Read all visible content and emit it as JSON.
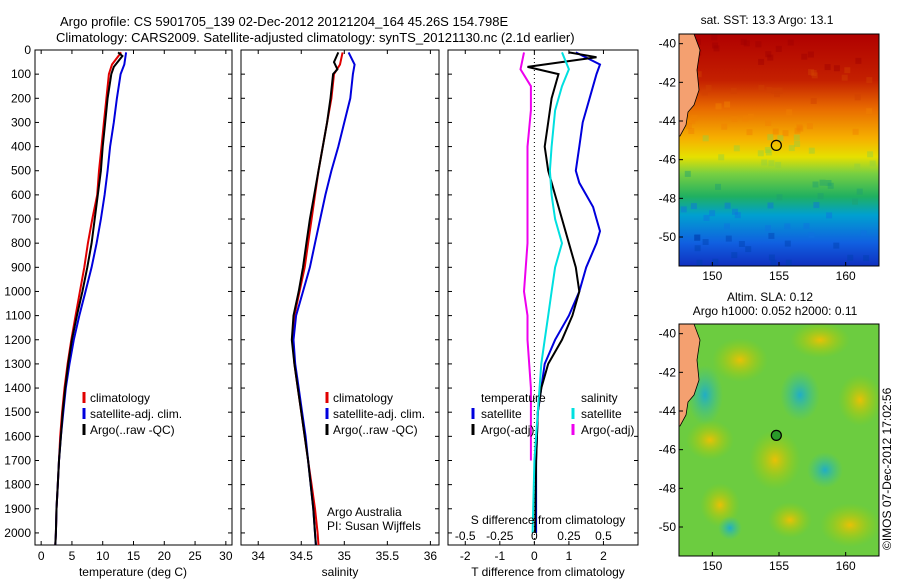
{
  "figure": {
    "title_line1": "Argo profile: CS 5901705_139 02-Dec-2012 20121204_164 45.26S 154.798E",
    "title_line2": "Climatology: CARS2009. Satellite-adjusted climatology: synTS_20121130.nc (2.1d earlier)",
    "side_stamp": "©IMOS 07-Dec-2012 17:02:56",
    "credit_line1": "Argo Australia",
    "credit_line2": "PI: Susan Wijffels"
  },
  "colors": {
    "climatology": "#e00000",
    "satellite": "#0000dd",
    "argo": "#000000",
    "salinity_sat": "#00e0e0",
    "salinity_argo": "#ee00ee"
  },
  "chart_data": [
    {
      "type": "line",
      "panel": "temperature",
      "xlabel": "temperature (deg C)",
      "xlim": [
        -1,
        31
      ],
      "xticks": [
        0,
        5,
        10,
        15,
        20,
        25,
        30
      ],
      "ylim": [
        2050,
        0
      ],
      "yticks": [
        0,
        100,
        200,
        300,
        400,
        500,
        600,
        700,
        800,
        900,
        1000,
        1100,
        1200,
        1300,
        1400,
        1500,
        1600,
        1700,
        1800,
        1900,
        2000
      ],
      "legend": [
        "climatology",
        "satellite-adj. clim.",
        "Argo(..raw -QC)"
      ],
      "legend_position": "lower-center",
      "series": [
        {
          "name": "climatology",
          "color": "#e00000",
          "points": [
            [
              13,
              10
            ],
            [
              11.5,
              60
            ],
            [
              11,
              100
            ],
            [
              10.6,
              200
            ],
            [
              10.2,
              300
            ],
            [
              9.8,
              400
            ],
            [
              9.4,
              500
            ],
            [
              9.1,
              600
            ],
            [
              8.3,
              700
            ],
            [
              7.6,
              800
            ],
            [
              7,
              900
            ],
            [
              6.3,
              1000
            ],
            [
              5.6,
              1100
            ],
            [
              4.9,
              1200
            ],
            [
              4.3,
              1300
            ],
            [
              3.8,
              1400
            ],
            [
              3.4,
              1500
            ],
            [
              3.1,
              1600
            ],
            [
              2.9,
              1700
            ],
            [
              2.7,
              1800
            ],
            [
              2.5,
              1900
            ],
            [
              2.4,
              2000
            ],
            [
              2.3,
              2050
            ]
          ]
        },
        {
          "name": "satellite-adj. clim.",
          "color": "#0000dd",
          "points": [
            [
              13.8,
              10
            ],
            [
              13.5,
              60
            ],
            [
              12.9,
              100
            ],
            [
              12.3,
              200
            ],
            [
              11.8,
              300
            ],
            [
              11.2,
              400
            ],
            [
              10.8,
              500
            ],
            [
              10.3,
              600
            ],
            [
              9.7,
              700
            ],
            [
              9,
              800
            ],
            [
              8.2,
              900
            ],
            [
              7.2,
              1000
            ],
            [
              6.2,
              1100
            ],
            [
              5.3,
              1200
            ],
            [
              4.6,
              1300
            ],
            [
              4,
              1400
            ],
            [
              3.6,
              1500
            ],
            [
              3.2,
              1600
            ],
            [
              2.9,
              1700
            ],
            [
              2.7,
              1800
            ],
            [
              2.5,
              1900
            ],
            [
              2.4,
              2000
            ],
            [
              2.3,
              2050
            ]
          ]
        },
        {
          "name": "Argo(..raw -QC)",
          "color": "#000000",
          "points": [
            [
              12.5,
              10
            ],
            [
              13.2,
              25
            ],
            [
              11.8,
              70
            ],
            [
              11.4,
              100
            ],
            [
              10.8,
              200
            ],
            [
              10.4,
              300
            ],
            [
              10,
              400
            ],
            [
              9.7,
              500
            ],
            [
              9.2,
              600
            ],
            [
              8.7,
              700
            ],
            [
              8.2,
              800
            ],
            [
              7.5,
              900
            ],
            [
              6.7,
              1000
            ],
            [
              5.8,
              1100
            ],
            [
              5,
              1200
            ],
            [
              4.4,
              1300
            ],
            [
              3.9,
              1400
            ],
            [
              3.5,
              1500
            ],
            [
              3.2,
              1600
            ],
            [
              2.9,
              1700
            ],
            [
              2.7,
              1800
            ],
            [
              2.5,
              1900
            ],
            [
              2.4,
              2000
            ],
            [
              2.3,
              2050
            ]
          ]
        }
      ]
    },
    {
      "type": "line",
      "panel": "salinity",
      "xlabel": "salinity",
      "xlim": [
        33.8,
        36.1
      ],
      "xticks": [
        34,
        34.5,
        35,
        35.5,
        36
      ],
      "xtick_labels": [
        "34",
        "34.5",
        "35",
        "35.5",
        "36"
      ],
      "ylim": [
        2050,
        0
      ],
      "legend": [
        "climatology",
        "satellite-adj. clim.",
        "Argo(..raw -QC)"
      ],
      "legend_position": "lower-right",
      "series": [
        {
          "name": "climatology",
          "color": "#e00000",
          "points": [
            [
              34.98,
              10
            ],
            [
              34.95,
              60
            ],
            [
              34.88,
              100
            ],
            [
              34.85,
              200
            ],
            [
              34.8,
              300
            ],
            [
              34.75,
              400
            ],
            [
              34.7,
              500
            ],
            [
              34.66,
              600
            ],
            [
              34.62,
              700
            ],
            [
              34.58,
              800
            ],
            [
              34.54,
              900
            ],
            [
              34.48,
              1000
            ],
            [
              34.42,
              1100
            ],
            [
              34.4,
              1200
            ],
            [
              34.42,
              1300
            ],
            [
              34.46,
              1400
            ],
            [
              34.5,
              1500
            ],
            [
              34.54,
              1600
            ],
            [
              34.58,
              1700
            ],
            [
              34.62,
              1800
            ],
            [
              34.66,
              1900
            ],
            [
              34.69,
              2000
            ],
            [
              34.7,
              2050
            ]
          ]
        },
        {
          "name": "satellite-adj. clim.",
          "color": "#0000dd",
          "points": [
            [
              35.05,
              10
            ],
            [
              35.12,
              60
            ],
            [
              35.1,
              100
            ],
            [
              35.07,
              200
            ],
            [
              35,
              300
            ],
            [
              34.93,
              400
            ],
            [
              34.85,
              500
            ],
            [
              34.78,
              600
            ],
            [
              34.72,
              700
            ],
            [
              34.66,
              800
            ],
            [
              34.6,
              900
            ],
            [
              34.52,
              1000
            ],
            [
              34.44,
              1100
            ],
            [
              34.41,
              1200
            ],
            [
              34.43,
              1300
            ],
            [
              34.47,
              1400
            ],
            [
              34.51,
              1500
            ],
            [
              34.55,
              1600
            ],
            [
              34.58,
              1700
            ],
            [
              34.61,
              1800
            ],
            [
              34.64,
              1900
            ],
            [
              34.66,
              2000
            ],
            [
              34.67,
              2050
            ]
          ]
        },
        {
          "name": "Argo(..raw -QC)",
          "color": "#000000",
          "points": [
            [
              34.93,
              10
            ],
            [
              34.88,
              50
            ],
            [
              34.92,
              80
            ],
            [
              34.87,
              100
            ],
            [
              34.84,
              200
            ],
            [
              34.8,
              300
            ],
            [
              34.75,
              400
            ],
            [
              34.7,
              500
            ],
            [
              34.65,
              600
            ],
            [
              34.6,
              700
            ],
            [
              34.56,
              800
            ],
            [
              34.52,
              900
            ],
            [
              34.47,
              1000
            ],
            [
              34.41,
              1100
            ],
            [
              34.39,
              1200
            ],
            [
              34.42,
              1300
            ],
            [
              34.46,
              1400
            ],
            [
              34.5,
              1500
            ],
            [
              34.54,
              1600
            ],
            [
              34.58,
              1700
            ],
            [
              34.61,
              1800
            ],
            [
              34.64,
              1900
            ],
            [
              34.66,
              2000
            ],
            [
              34.67,
              2050
            ]
          ]
        }
      ]
    },
    {
      "type": "line",
      "panel": "difference",
      "xlabel": "T difference from climatology",
      "xlabel_top": "S difference from climatology",
      "xlim": [
        -2.5,
        3.0
      ],
      "xticks": [
        -2,
        -1,
        0,
        1,
        2
      ],
      "top_tick_labels": [
        "-0.5",
        "-0.25",
        "0",
        "0.25",
        "0.5"
      ],
      "top_tick_positions_T": [
        -2,
        -1,
        0,
        1,
        2
      ],
      "ylim": [
        2050,
        0
      ],
      "legend_groups": [
        {
          "heading": "temperature",
          "items": [
            "satellite",
            "Argo(-adj)"
          ]
        },
        {
          "heading": "salinity",
          "items": [
            "satellite",
            "Argo(-adj)"
          ]
        }
      ],
      "series": [
        {
          "name": "temperature satellite",
          "color": "#0000dd",
          "points": [
            [
              1.2,
              10
            ],
            [
              1.9,
              60
            ],
            [
              1.8,
              100
            ],
            [
              1.6,
              200
            ],
            [
              1.4,
              300
            ],
            [
              1.3,
              400
            ],
            [
              1.2,
              500
            ],
            [
              1.3,
              550
            ],
            [
              1.5,
              600
            ],
            [
              1.7,
              650
            ],
            [
              1.8,
              700
            ],
            [
              1.9,
              750
            ],
            [
              1.8,
              800
            ],
            [
              1.5,
              900
            ],
            [
              1.3,
              1000
            ],
            [
              1.0,
              1100
            ],
            [
              0.6,
              1200
            ],
            [
              0.3,
              1300
            ],
            [
              0.2,
              1400
            ],
            [
              0.1,
              1500
            ],
            [
              0.05,
              1700
            ],
            [
              0.05,
              2000
            ]
          ]
        },
        {
          "name": "temperature Argo(-adj)",
          "color": "#000000",
          "points": [
            [
              1.0,
              10
            ],
            [
              1.8,
              30
            ],
            [
              -0.2,
              70
            ],
            [
              0.7,
              100
            ],
            [
              0.5,
              200
            ],
            [
              0.4,
              300
            ],
            [
              0.3,
              400
            ],
            [
              0.4,
              500
            ],
            [
              0.6,
              600
            ],
            [
              0.8,
              700
            ],
            [
              1.0,
              800
            ],
            [
              1.2,
              900
            ],
            [
              1.3,
              1000
            ],
            [
              1.1,
              1100
            ],
            [
              0.8,
              1200
            ],
            [
              0.4,
              1300
            ],
            [
              0.2,
              1400
            ],
            [
              0.1,
              1500
            ],
            [
              0.05,
              1700
            ],
            [
              0.02,
              2000
            ]
          ]
        },
        {
          "name": "salinity satellite",
          "color": "#00e0e0",
          "points": [
            [
              0.8,
              10
            ],
            [
              1.0,
              80
            ],
            [
              0.8,
              150
            ],
            [
              0.6,
              250
            ],
            [
              0.5,
              400
            ],
            [
              0.45,
              500
            ],
            [
              0.5,
              600
            ],
            [
              0.6,
              700
            ],
            [
              0.8,
              800
            ],
            [
              0.6,
              900
            ],
            [
              0.5,
              1000
            ],
            [
              0.4,
              1100
            ],
            [
              0.3,
              1200
            ],
            [
              0.2,
              1300
            ],
            [
              0.1,
              1500
            ],
            [
              0.0,
              1700
            ],
            [
              -0.05,
              2000
            ]
          ]
        },
        {
          "name": "salinity Argo(-adj)",
          "color": "#ee00ee",
          "points": [
            [
              -0.3,
              10
            ],
            [
              -0.4,
              80
            ],
            [
              -0.1,
              150
            ],
            [
              -0.1,
              250
            ],
            [
              -0.2,
              400
            ],
            [
              -0.2,
              600
            ],
            [
              -0.2,
              800
            ],
            [
              -0.3,
              1000
            ],
            [
              -0.2,
              1100
            ],
            [
              -0.2,
              1200
            ],
            [
              -0.1,
              1400
            ],
            [
              -0.1,
              1600
            ],
            [
              -0.1,
              1700
            ]
          ]
        }
      ]
    },
    {
      "type": "heatmap",
      "panel": "sst_map",
      "title": "sat. SST: 13.3 Argo: 13.1",
      "xticks": [
        150,
        155,
        160
      ],
      "yticks": [
        -40,
        -42,
        -44,
        -46,
        -48,
        -50
      ],
      "xlim": [
        147.5,
        162.5
      ],
      "ylim": [
        -51.5,
        -39.5
      ],
      "float_position": [
        154.8,
        -45.26
      ]
    },
    {
      "type": "heatmap",
      "panel": "sla_map",
      "title_line1": "Altim. SLA: 0.12",
      "title_line2": "Argo h1000: 0.052 h2000: 0.11",
      "xticks": [
        150,
        155,
        160
      ],
      "yticks": [
        -40,
        -42,
        -44,
        -46,
        -48,
        -50
      ],
      "xlim": [
        147.5,
        162.5
      ],
      "ylim": [
        -51.5,
        -39.5
      ],
      "float_position": [
        154.8,
        -45.26
      ]
    }
  ]
}
